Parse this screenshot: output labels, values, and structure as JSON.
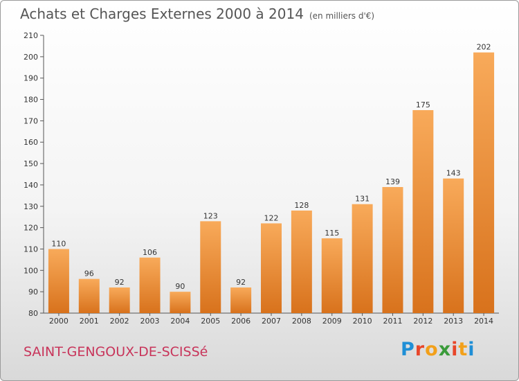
{
  "header": {
    "title": "Achats et Charges Externes 2000 à 2014",
    "unit": "(en milliers d'€)"
  },
  "footer": {
    "commune": "SAINT-GENGOUX-DE-SCISSé",
    "logo": {
      "letters": [
        "P",
        "r",
        "o",
        "x",
        "i",
        "t",
        "i"
      ],
      "colors": [
        "#1f8fd6",
        "#e8462a",
        "#f2a01a",
        "#3a9b3a",
        "#e8462a",
        "#f2a01a",
        "#1f8fd6"
      ]
    }
  },
  "chart_data": {
    "type": "bar",
    "title": "Achats et Charges Externes 2000 à 2014",
    "subtitle": "(en milliers d'€)",
    "categories": [
      "2000",
      "2001",
      "2002",
      "2003",
      "2004",
      "2005",
      "2006",
      "2007",
      "2008",
      "2009",
      "2010",
      "2011",
      "2012",
      "2013",
      "2014"
    ],
    "values": [
      110,
      96,
      92,
      106,
      90,
      123,
      92,
      122,
      128,
      115,
      131,
      139,
      175,
      143,
      202
    ],
    "ylim": [
      80,
      210
    ],
    "yticks": [
      80,
      90,
      100,
      110,
      120,
      130,
      140,
      150,
      160,
      170,
      180,
      190,
      200,
      210
    ],
    "grid": false,
    "bar_color": "#f0892b"
  }
}
